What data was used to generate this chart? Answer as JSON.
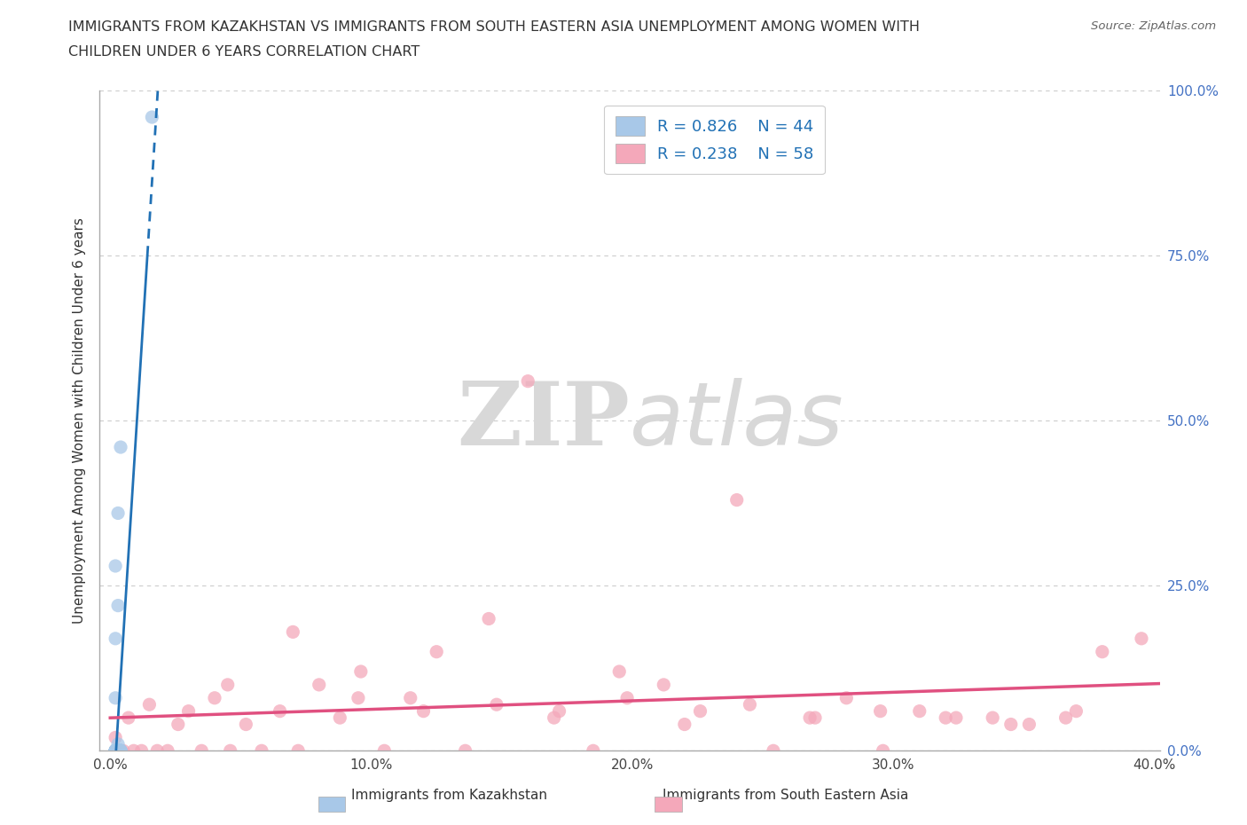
{
  "title_line1": "IMMIGRANTS FROM KAZAKHSTAN VS IMMIGRANTS FROM SOUTH EASTERN ASIA UNEMPLOYMENT AMONG WOMEN WITH",
  "title_line2": "CHILDREN UNDER 6 YEARS CORRELATION CHART",
  "source_text": "Source: ZipAtlas.com",
  "ylabel": "Unemployment Among Women with Children Under 6 years",
  "xlim": [
    -0.004,
    0.402
  ],
  "ylim": [
    0.0,
    1.0
  ],
  "xticks": [
    0.0,
    0.1,
    0.2,
    0.3,
    0.4
  ],
  "yticks": [
    0.0,
    0.25,
    0.5,
    0.75,
    1.0
  ],
  "xtick_labels": [
    "0.0%",
    "10.0%",
    "20.0%",
    "30.0%",
    "40.0%"
  ],
  "ytick_labels_right": [
    "0.0%",
    "25.0%",
    "50.0%",
    "75.0%",
    "100.0%"
  ],
  "R_kaz": 0.826,
  "N_kaz": 44,
  "R_sea": 0.238,
  "N_sea": 58,
  "color_kaz": "#a8c8e8",
  "color_sea": "#f4a8ba",
  "line_color_kaz": "#2171b5",
  "line_color_sea": "#e05080",
  "watermark_ZIP": "ZIP",
  "watermark_atlas": "atlas",
  "watermark_color": "#d8d8d8",
  "legend_label_kaz": "R = 0.826    N = 44",
  "legend_label_sea": "R = 0.238    N = 58",
  "bottom_label_kaz": "Immigrants from Kazakhstan",
  "bottom_label_sea": "Immigrants from South Eastern Asia",
  "kaz_x": [
    0.016,
    0.003,
    0.004,
    0.004,
    0.003,
    0.003,
    0.002,
    0.004,
    0.003,
    0.003,
    0.002,
    0.003,
    0.002,
    0.004,
    0.003,
    0.002,
    0.003,
    0.004,
    0.002,
    0.003,
    0.003,
    0.004,
    0.002,
    0.003,
    0.003,
    0.002,
    0.004,
    0.002,
    0.003,
    0.002,
    0.003,
    0.004,
    0.002,
    0.003,
    0.002,
    0.003,
    0.004,
    0.002,
    0.003,
    0.002,
    0.003,
    0.002,
    0.003,
    0.002
  ],
  "kaz_y": [
    0.96,
    0.0,
    0.0,
    0.0,
    0.01,
    0.0,
    0.0,
    0.0,
    0.0,
    0.36,
    0.0,
    0.0,
    0.0,
    0.0,
    0.0,
    0.0,
    0.0,
    0.46,
    0.0,
    0.0,
    0.22,
    0.0,
    0.0,
    0.0,
    0.0,
    0.0,
    0.0,
    0.28,
    0.0,
    0.0,
    0.0,
    0.0,
    0.0,
    0.0,
    0.17,
    0.0,
    0.0,
    0.0,
    0.0,
    0.08,
    0.0,
    0.0,
    0.0,
    0.0
  ],
  "sea_x": [
    0.002,
    0.003,
    0.005,
    0.007,
    0.009,
    0.012,
    0.015,
    0.018,
    0.022,
    0.026,
    0.03,
    0.035,
    0.04,
    0.046,
    0.052,
    0.058,
    0.065,
    0.072,
    0.08,
    0.088,
    0.096,
    0.105,
    0.115,
    0.125,
    0.136,
    0.148,
    0.16,
    0.172,
    0.185,
    0.198,
    0.212,
    0.226,
    0.24,
    0.254,
    0.268,
    0.282,
    0.296,
    0.31,
    0.324,
    0.338,
    0.352,
    0.366,
    0.38,
    0.045,
    0.07,
    0.095,
    0.12,
    0.145,
    0.17,
    0.195,
    0.22,
    0.245,
    0.27,
    0.295,
    0.32,
    0.345,
    0.37,
    0.395
  ],
  "sea_y": [
    0.02,
    0.0,
    0.0,
    0.05,
    0.0,
    0.0,
    0.07,
    0.0,
    0.0,
    0.04,
    0.06,
    0.0,
    0.08,
    0.0,
    0.04,
    0.0,
    0.06,
    0.0,
    0.1,
    0.05,
    0.12,
    0.0,
    0.08,
    0.15,
    0.0,
    0.07,
    0.56,
    0.06,
    0.0,
    0.08,
    0.1,
    0.06,
    0.38,
    0.0,
    0.05,
    0.08,
    0.0,
    0.06,
    0.05,
    0.05,
    0.04,
    0.05,
    0.15,
    0.1,
    0.18,
    0.08,
    0.06,
    0.2,
    0.05,
    0.12,
    0.04,
    0.07,
    0.05,
    0.06,
    0.05,
    0.04,
    0.06,
    0.17
  ]
}
